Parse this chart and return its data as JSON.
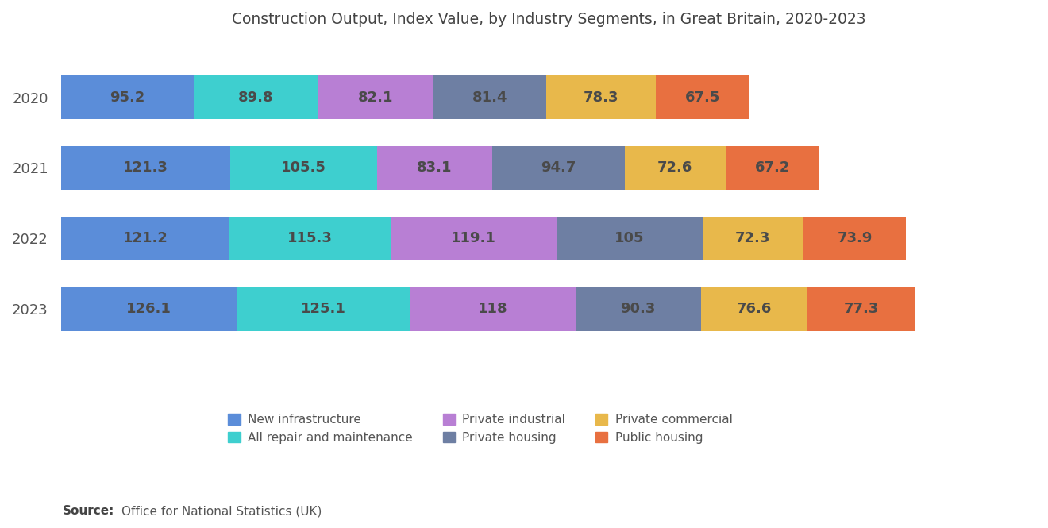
{
  "title": "Construction Output, Index Value, by Industry Segments, in Great Britain, 2020-2023",
  "years": [
    "2020",
    "2021",
    "2022",
    "2023"
  ],
  "segments": [
    "New infrastructure",
    "All repair and maintenance",
    "Private industrial",
    "Private housing",
    "Private commercial",
    "Public housing"
  ],
  "values": {
    "2020": [
      95.2,
      89.8,
      82.1,
      81.4,
      78.3,
      67.5
    ],
    "2021": [
      121.3,
      105.5,
      83.1,
      94.7,
      72.6,
      67.2
    ],
    "2022": [
      121.2,
      115.3,
      119.1,
      105.0,
      72.3,
      73.9
    ],
    "2023": [
      126.1,
      125.1,
      118.0,
      90.3,
      76.6,
      77.3
    ]
  },
  "colors": [
    "#5B8DD9",
    "#3ECFCF",
    "#B87FD4",
    "#6E7FA3",
    "#E8B84B",
    "#E87040"
  ],
  "legend_labels": [
    "New infrastructure",
    "All repair and maintenance",
    "Private industrial",
    "Private housing",
    "Private commercial",
    "Public housing"
  ],
  "background_color": "#FFFFFF",
  "bar_height": 0.62,
  "title_fontsize": 13.5,
  "label_fontsize": 13,
  "legend_fontsize": 11,
  "source_bold_fontsize": 11,
  "source_fontsize": 11,
  "ytick_fontsize": 13,
  "label_color": "#4A4A4A",
  "ytick_color": "#555555",
  "title_color": "#444444"
}
